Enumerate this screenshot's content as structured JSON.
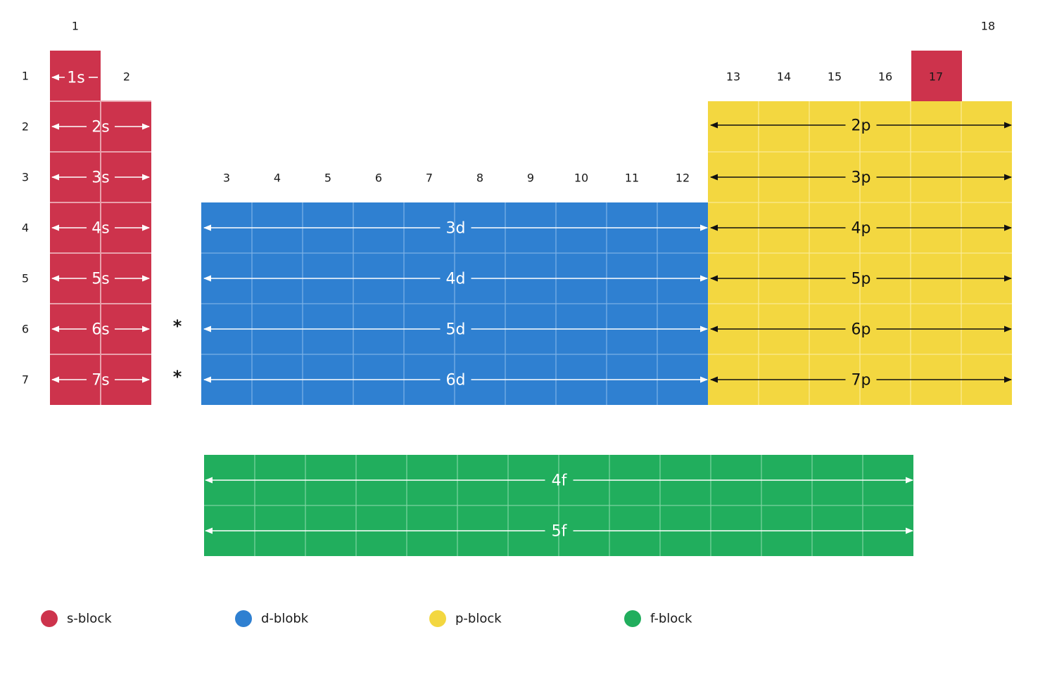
{
  "colors": {
    "s": "#cd334c",
    "d": "#2f80d1",
    "p": "#f3d740",
    "f": "#21ae5d"
  },
  "groups": [
    "1",
    "2",
    "3",
    "4",
    "5",
    "6",
    "7",
    "8",
    "9",
    "10",
    "11",
    "12",
    "13",
    "14",
    "15",
    "16",
    "17",
    "18"
  ],
  "periods": [
    "1",
    "2",
    "3",
    "4",
    "5",
    "6",
    "7"
  ],
  "markers": [
    "*",
    "*"
  ],
  "orbitals": {
    "s": [
      "1s",
      "2s",
      "3s",
      "4s",
      "5s",
      "6s",
      "7s"
    ],
    "he": "1s",
    "d": [
      "3d",
      "4d",
      "5d",
      "6d"
    ],
    "p": [
      "2p",
      "3p",
      "4p",
      "5p",
      "6p",
      "7p"
    ],
    "f": [
      "4f",
      "5f"
    ]
  },
  "legend": [
    {
      "label": "s-block",
      "color": "#cd334c"
    },
    {
      "label": "d-blobk",
      "color": "#2f80d1"
    },
    {
      "label": "p-block",
      "color": "#f3d740"
    },
    {
      "label": "f-block",
      "color": "#21ae5d"
    }
  ]
}
